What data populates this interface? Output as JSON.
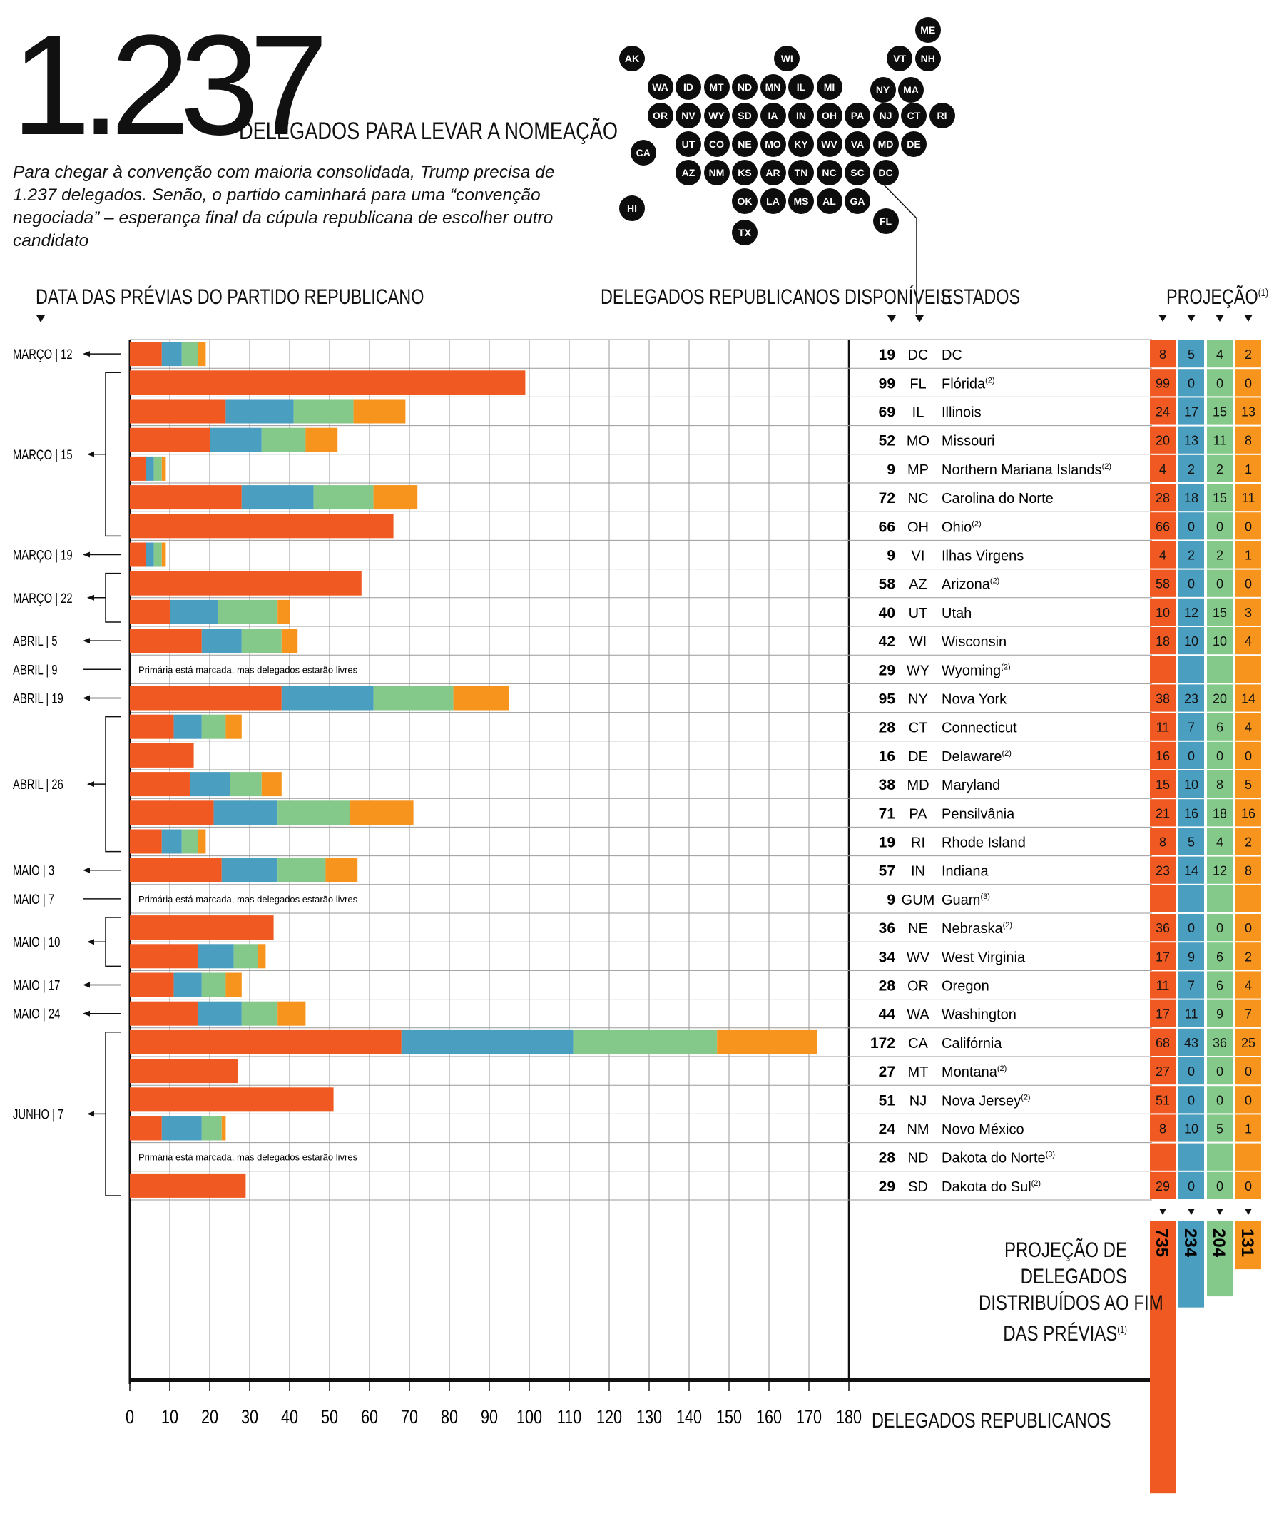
{
  "headline": {
    "number": "1.237",
    "subtitle": "DELEGADOS PARA LEVAR A NOMEAÇÃO",
    "intro": "Para chegar à convenção com maioria consolidada, Trump precisa de 1.237 delegados. Senão, o partido caminhará para uma “convenção negociada” – esperança final da cúpula republicana de escolher outro candidato"
  },
  "headers": {
    "dates": "DATA DAS PRÉVIAS DO PARTIDO REPUBLICANO",
    "available": "DELEGADOS REPUBLICANOS DISPONÍVEIS",
    "states": "ESTADOS",
    "projection": "PROJEÇÃO",
    "projection_sup": "(1)",
    "xaxis": "DELEGADOS REPUBLICANOS"
  },
  "colors": {
    "trump": "#f05a22",
    "cruz": "#4a9ec0",
    "kasich": "#84c98a",
    "other": "#f7941d",
    "ink": "#111111",
    "grid": "#9a9a9a"
  },
  "map_states": [
    {
      "abbr": "ME",
      "col": 10.5,
      "row": -1
    },
    {
      "abbr": "AK",
      "col": 0,
      "row": 0
    },
    {
      "abbr": "WI",
      "col": 5.5,
      "row": 0
    },
    {
      "abbr": "VT",
      "col": 9.5,
      "row": 0
    },
    {
      "abbr": "NH",
      "col": 10.5,
      "row": 0
    },
    {
      "abbr": "WA",
      "col": 1,
      "row": 1
    },
    {
      "abbr": "ID",
      "col": 2,
      "row": 1
    },
    {
      "abbr": "MT",
      "col": 3,
      "row": 1
    },
    {
      "abbr": "ND",
      "col": 4,
      "row": 1
    },
    {
      "abbr": "MN",
      "col": 5,
      "row": 1
    },
    {
      "abbr": "IL",
      "col": 6,
      "row": 1
    },
    {
      "abbr": "MI",
      "col": 7,
      "row": 1
    },
    {
      "abbr": "NY",
      "col": 8.9,
      "row": 1.1
    },
    {
      "abbr": "MA",
      "col": 9.9,
      "row": 1.1
    },
    {
      "abbr": "OR",
      "col": 1,
      "row": 2
    },
    {
      "abbr": "NV",
      "col": 2,
      "row": 2
    },
    {
      "abbr": "WY",
      "col": 3,
      "row": 2
    },
    {
      "abbr": "SD",
      "col": 4,
      "row": 2
    },
    {
      "abbr": "IA",
      "col": 5,
      "row": 2
    },
    {
      "abbr": "IN",
      "col": 6,
      "row": 2
    },
    {
      "abbr": "OH",
      "col": 7,
      "row": 2
    },
    {
      "abbr": "PA",
      "col": 8,
      "row": 2
    },
    {
      "abbr": "NJ",
      "col": 9,
      "row": 2
    },
    {
      "abbr": "CT",
      "col": 10,
      "row": 2
    },
    {
      "abbr": "RI",
      "col": 11,
      "row": 2
    },
    {
      "abbr": "CA",
      "col": 0.4,
      "row": 3.3
    },
    {
      "abbr": "UT",
      "col": 2,
      "row": 3
    },
    {
      "abbr": "CO",
      "col": 3,
      "row": 3
    },
    {
      "abbr": "NE",
      "col": 4,
      "row": 3
    },
    {
      "abbr": "MO",
      "col": 5,
      "row": 3
    },
    {
      "abbr": "KY",
      "col": 6,
      "row": 3
    },
    {
      "abbr": "WV",
      "col": 7,
      "row": 3
    },
    {
      "abbr": "VA",
      "col": 8,
      "row": 3
    },
    {
      "abbr": "MD",
      "col": 9,
      "row": 3
    },
    {
      "abbr": "DE",
      "col": 10,
      "row": 3
    },
    {
      "abbr": "AZ",
      "col": 2,
      "row": 4
    },
    {
      "abbr": "NM",
      "col": 3,
      "row": 4
    },
    {
      "abbr": "KS",
      "col": 4,
      "row": 4
    },
    {
      "abbr": "AR",
      "col": 5,
      "row": 4
    },
    {
      "abbr": "TN",
      "col": 6,
      "row": 4
    },
    {
      "abbr": "NC",
      "col": 7,
      "row": 4
    },
    {
      "abbr": "SC",
      "col": 8,
      "row": 4
    },
    {
      "abbr": "DC",
      "col": 9,
      "row": 4
    },
    {
      "abbr": "HI",
      "col": 0,
      "row": 5.25
    },
    {
      "abbr": "OK",
      "col": 4,
      "row": 5
    },
    {
      "abbr": "LA",
      "col": 5,
      "row": 5
    },
    {
      "abbr": "MS",
      "col": 6,
      "row": 5
    },
    {
      "abbr": "AL",
      "col": 7,
      "row": 5
    },
    {
      "abbr": "GA",
      "col": 8,
      "row": 5
    },
    {
      "abbr": "FL",
      "col": 9,
      "row": 5.7
    },
    {
      "abbr": "TX",
      "col": 4,
      "row": 6.1
    }
  ],
  "date_groups": [
    {
      "label": "MARÇO | 12",
      "from": 0,
      "to": 0
    },
    {
      "label": "MARÇO | 15",
      "from": 1,
      "to": 6
    },
    {
      "label": "MARÇO | 19",
      "from": 7,
      "to": 7
    },
    {
      "label": "MARÇO | 22",
      "from": 8,
      "to": 9
    },
    {
      "label": "ABRIL | 5",
      "from": 10,
      "to": 10
    },
    {
      "label": "ABRIL | 9",
      "from": 11,
      "to": 11,
      "line_only": true
    },
    {
      "label": "ABRIL | 19",
      "from": 12,
      "to": 12
    },
    {
      "label": "ABRIL | 26",
      "from": 13,
      "to": 17
    },
    {
      "label": "MAIO | 3",
      "from": 18,
      "to": 18
    },
    {
      "label": "MAIO | 7",
      "from": 19,
      "to": 19,
      "line_only": true
    },
    {
      "label": "MAIO | 10",
      "from": 20,
      "to": 21
    },
    {
      "label": "MAIO | 17",
      "from": 22,
      "to": 22
    },
    {
      "label": "MAIO | 24",
      "from": 23,
      "to": 23
    },
    {
      "label": "JUNHO | 7",
      "from": 24,
      "to": 29
    }
  ],
  "chart_data": {
    "type": "bar",
    "orientation": "horizontal",
    "stacked": true,
    "xlabel": "DELEGADOS REPUBLICANOS",
    "xlim": [
      0,
      180
    ],
    "xticks": [
      0,
      10,
      20,
      30,
      40,
      50,
      60,
      70,
      80,
      90,
      100,
      110,
      120,
      130,
      140,
      150,
      160,
      170,
      180
    ],
    "free_note": "Primária está marcada, mas delegados estarão livres",
    "rows": [
      {
        "available": 19,
        "abbr": "DC",
        "name": "DC",
        "sup": "",
        "proj": [
          8,
          5,
          4,
          2
        ]
      },
      {
        "available": 99,
        "abbr": "FL",
        "name": "Flórida",
        "sup": "(2)",
        "proj": [
          99,
          0,
          0,
          0
        ]
      },
      {
        "available": 69,
        "abbr": "IL",
        "name": "Illinois",
        "sup": "",
        "proj": [
          24,
          17,
          15,
          13
        ]
      },
      {
        "available": 52,
        "abbr": "MO",
        "name": "Missouri",
        "sup": "",
        "proj": [
          20,
          13,
          11,
          8
        ]
      },
      {
        "available": 9,
        "abbr": "MP",
        "name": "Northern Mariana Islands",
        "sup": "(2)",
        "proj": [
          4,
          2,
          2,
          1
        ]
      },
      {
        "available": 72,
        "abbr": "NC",
        "name": "Carolina do Norte",
        "sup": "",
        "proj": [
          28,
          18,
          15,
          11
        ]
      },
      {
        "available": 66,
        "abbr": "OH",
        "name": "Ohio",
        "sup": "(2)",
        "proj": [
          66,
          0,
          0,
          0
        ]
      },
      {
        "available": 9,
        "abbr": "VI",
        "name": "Ilhas Virgens",
        "sup": "",
        "proj": [
          4,
          2,
          2,
          1
        ]
      },
      {
        "available": 58,
        "abbr": "AZ",
        "name": "Arizona",
        "sup": "(2)",
        "proj": [
          58,
          0,
          0,
          0
        ]
      },
      {
        "available": 40,
        "abbr": "UT",
        "name": "Utah",
        "sup": "",
        "proj": [
          10,
          12,
          15,
          3
        ]
      },
      {
        "available": 42,
        "abbr": "WI",
        "name": "Wisconsin",
        "sup": "",
        "proj": [
          18,
          10,
          10,
          4
        ]
      },
      {
        "available": 29,
        "abbr": "WY",
        "name": "Wyoming",
        "sup": "(2)",
        "proj": null
      },
      {
        "available": 95,
        "abbr": "NY",
        "name": "Nova York",
        "sup": "",
        "proj": [
          38,
          23,
          20,
          14
        ]
      },
      {
        "available": 28,
        "abbr": "CT",
        "name": "Connecticut",
        "sup": "",
        "proj": [
          11,
          7,
          6,
          4
        ]
      },
      {
        "available": 16,
        "abbr": "DE",
        "name": "Delaware",
        "sup": "(2)",
        "proj": [
          16,
          0,
          0,
          0
        ]
      },
      {
        "available": 38,
        "abbr": "MD",
        "name": "Maryland",
        "sup": "",
        "proj": [
          15,
          10,
          8,
          5
        ]
      },
      {
        "available": 71,
        "abbr": "PA",
        "name": "Pensilvânia",
        "sup": "",
        "proj": [
          21,
          16,
          18,
          16
        ]
      },
      {
        "available": 19,
        "abbr": "RI",
        "name": "Rhode Island",
        "sup": "",
        "proj": [
          8,
          5,
          4,
          2
        ]
      },
      {
        "available": 57,
        "abbr": "IN",
        "name": "Indiana",
        "sup": "",
        "proj": [
          23,
          14,
          12,
          8
        ]
      },
      {
        "available": 9,
        "abbr": "GUM",
        "name": "Guam",
        "sup": "(3)",
        "proj": null
      },
      {
        "available": 36,
        "abbr": "NE",
        "name": "Nebraska",
        "sup": "(2)",
        "proj": [
          36,
          0,
          0,
          0
        ]
      },
      {
        "available": 34,
        "abbr": "WV",
        "name": "West Virginia",
        "sup": "",
        "proj": [
          17,
          9,
          6,
          2
        ]
      },
      {
        "available": 28,
        "abbr": "OR",
        "name": "Oregon",
        "sup": "",
        "proj": [
          11,
          7,
          6,
          4
        ]
      },
      {
        "available": 44,
        "abbr": "WA",
        "name": "Washington",
        "sup": "",
        "proj": [
          17,
          11,
          9,
          7
        ]
      },
      {
        "available": 172,
        "abbr": "CA",
        "name": "Califórnia",
        "sup": "",
        "proj": [
          68,
          43,
          36,
          25
        ]
      },
      {
        "available": 27,
        "abbr": "MT",
        "name": "Montana",
        "sup": "(2)",
        "proj": [
          27,
          0,
          0,
          0
        ]
      },
      {
        "available": 51,
        "abbr": "NJ",
        "name": "Nova Jersey",
        "sup": "(2)",
        "proj": [
          51,
          0,
          0,
          0
        ]
      },
      {
        "available": 24,
        "abbr": "NM",
        "name": "Novo México",
        "sup": "",
        "proj": [
          8,
          10,
          5,
          1
        ]
      },
      {
        "available": 28,
        "abbr": "ND",
        "name": "Dakota do Norte",
        "sup": "(3)",
        "proj": null
      },
      {
        "available": 29,
        "abbr": "SD",
        "name": "Dakota do Sul",
        "sup": "(2)",
        "proj": [
          29,
          0,
          0,
          0
        ]
      }
    ],
    "totals": [
      735,
      234,
      204,
      131
    ],
    "totals_title": [
      "PROJEÇÃO DE",
      "DELEGADOS",
      "DISTRIBUÍDOS AO FIM",
      "DAS PRÉVIAS"
    ],
    "totals_sup": "(1)"
  }
}
